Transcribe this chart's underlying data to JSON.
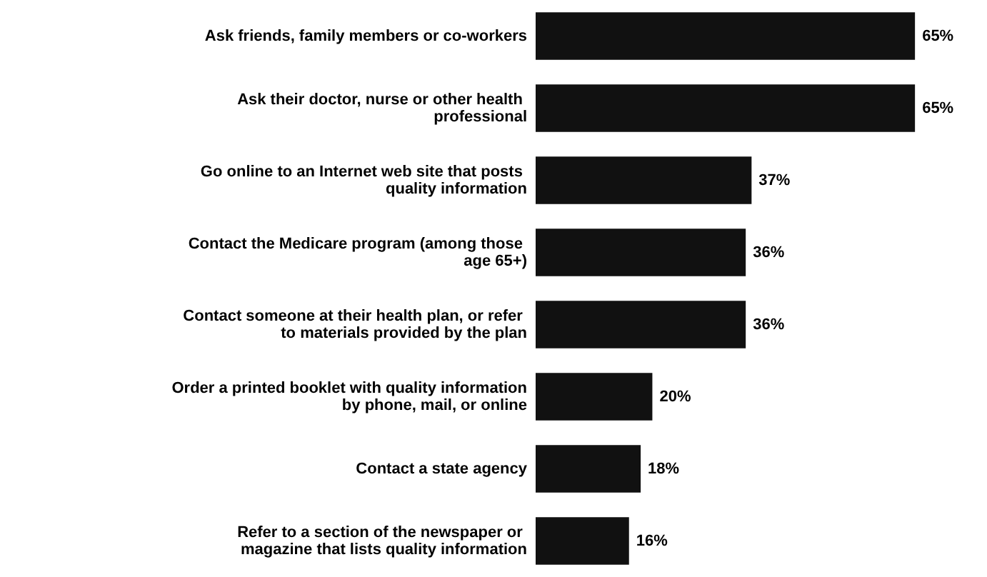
{
  "chart_data": {
    "type": "bar",
    "orientation": "horizontal",
    "categories": [
      "Ask friends, family members or co-workers",
      "Ask their doctor, nurse or other health professional",
      "Go online to an Internet web site that posts quality information",
      "Contact the Medicare program (among those age 65+)",
      "Contact someone at their health plan, or refer to materials provided by the plan",
      "Order a printed booklet with quality information by phone, mail, or online",
      "Contact a state agency",
      "Refer to a section of the newspaper or magazine that lists quality information"
    ],
    "values": [
      65,
      65,
      37,
      36,
      36,
      20,
      18,
      16
    ],
    "value_labels": [
      "65%",
      "65%",
      "37%",
      "36%",
      "36%",
      "20%",
      "18%",
      "16%"
    ],
    "color": "#111111"
  }
}
